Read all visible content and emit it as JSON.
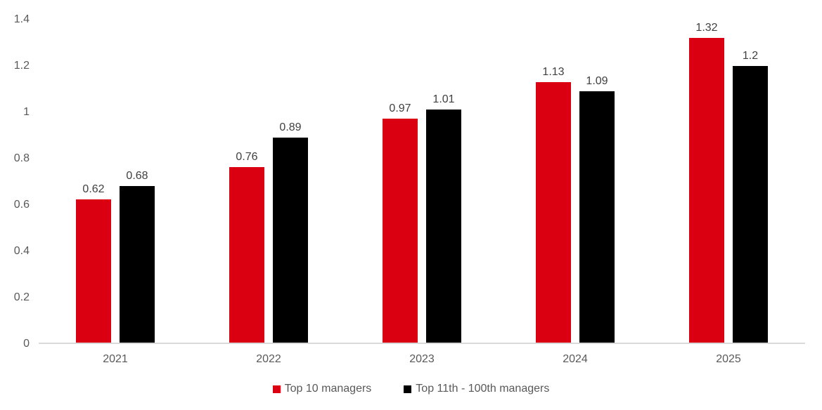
{
  "chart_data": {
    "type": "bar",
    "categories": [
      "2021",
      "2022",
      "2023",
      "2024",
      "2025"
    ],
    "series": [
      {
        "name": "Top 10 managers",
        "color": "#db0011",
        "values": [
          0.62,
          0.76,
          0.97,
          1.13,
          1.32
        ],
        "labels": [
          "0.62",
          "0.76",
          "0.97",
          "1.13",
          "1.32"
        ]
      },
      {
        "name": "Top 11th - 100th managers",
        "color": "#000000",
        "values": [
          0.68,
          0.89,
          1.01,
          1.09,
          1.2
        ],
        "labels": [
          "0.68",
          "0.89",
          "1.01",
          "1.09",
          "1.2"
        ]
      }
    ],
    "title": "",
    "xlabel": "",
    "ylabel": "",
    "ylim": [
      0,
      1.4
    ],
    "ytick_labels": [
      "0",
      "0.2",
      "0.4",
      "0.6",
      "0.8",
      "1",
      "1.2",
      "1.4"
    ],
    "grid": false,
    "legend_position": "bottom"
  },
  "colors": {
    "axis_line": "#d9d9d9",
    "tick_text": "#595959",
    "data_label_text": "#404040"
  }
}
